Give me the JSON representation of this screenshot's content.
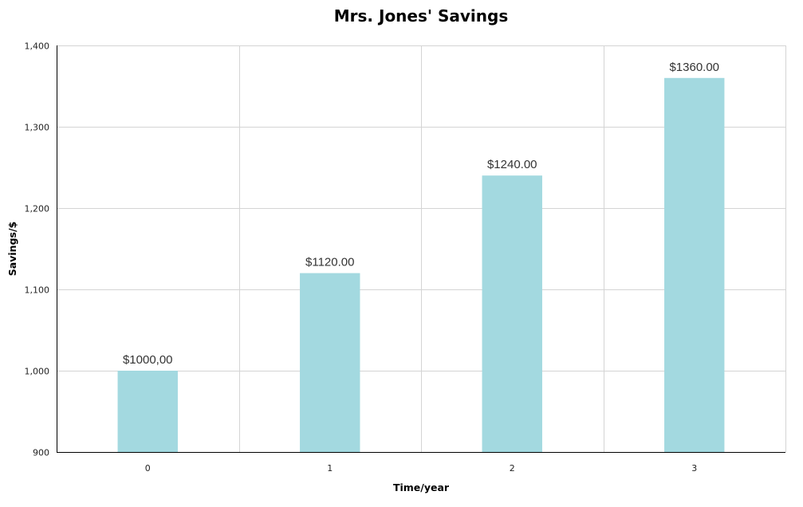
{
  "chart_data": {
    "type": "bar",
    "title": "Mrs. Jones' Savings",
    "xlabel": "Time/year",
    "ylabel": "Savings/$",
    "categories": [
      "0",
      "1",
      "2",
      "3"
    ],
    "values": [
      1000,
      1120,
      1240,
      1360
    ],
    "data_labels": [
      "$1000,00",
      "$1120.00",
      "$1240.00",
      "$1360.00"
    ],
    "ylim": [
      900,
      1400
    ],
    "yticks": [
      900,
      1000,
      1100,
      1200,
      1300,
      1400
    ],
    "ytick_labels": [
      "900",
      "1,000",
      "1,100",
      "1,200",
      "1,300",
      "1,400"
    ],
    "grid": true,
    "bar_color": "#a3d9e0"
  }
}
